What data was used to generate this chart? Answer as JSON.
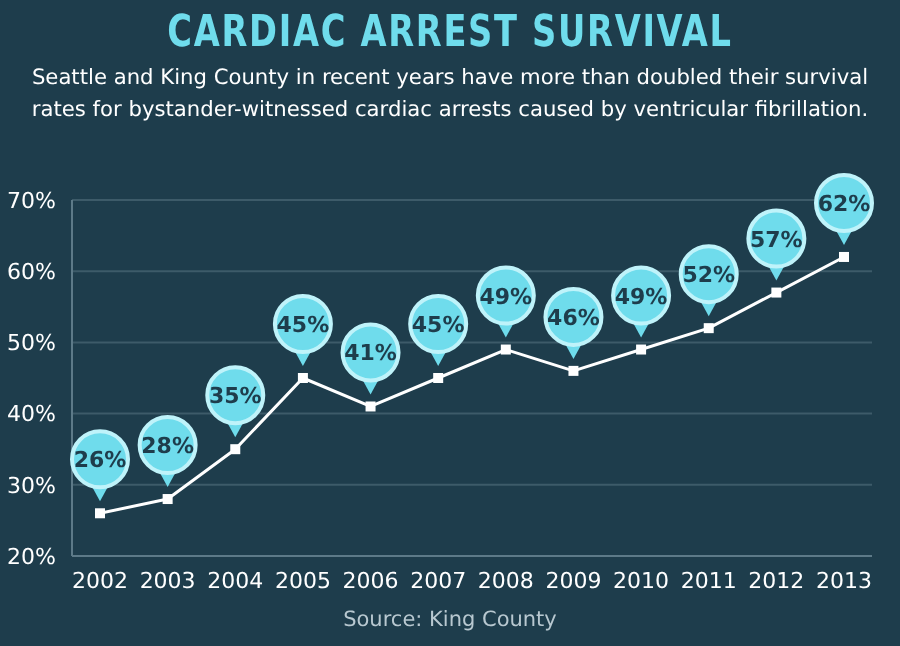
{
  "chart_data": {
    "type": "line",
    "title": "CARDIAC ARREST SURVIVAL",
    "subtitle": "Seattle and King County in recent years have more than doubled their survival rates for bystander-witnessed cardiac arrests caused by ventricular fibrillation.",
    "categories": [
      "2002",
      "2003",
      "2004",
      "2005",
      "2006",
      "2007",
      "2008",
      "2009",
      "2010",
      "2011",
      "2012",
      "2013"
    ],
    "series": [
      {
        "color": "#ffffff",
        "values": [
          26,
          28,
          35,
          45,
          41,
          45,
          49,
          46,
          49,
          52,
          57,
          62
        ],
        "value_labels": [
          "26%",
          "28%",
          "35%",
          "45%",
          "41%",
          "45%",
          "49%",
          "46%",
          "49%",
          "52%",
          "57%",
          "62%"
        ]
      }
    ],
    "ylim": [
      20,
      70
    ],
    "yticks": [
      {
        "value": 20,
        "label": "20%"
      },
      {
        "value": 30,
        "label": "30%"
      },
      {
        "value": 40,
        "label": "40%"
      },
      {
        "value": 50,
        "label": "50%"
      },
      {
        "value": 60,
        "label": "60%"
      },
      {
        "value": 70,
        "label": "70%"
      }
    ],
    "grid": "y",
    "marker": "square",
    "line_style": "solid",
    "annotations": [
      "Source: King County"
    ]
  }
}
